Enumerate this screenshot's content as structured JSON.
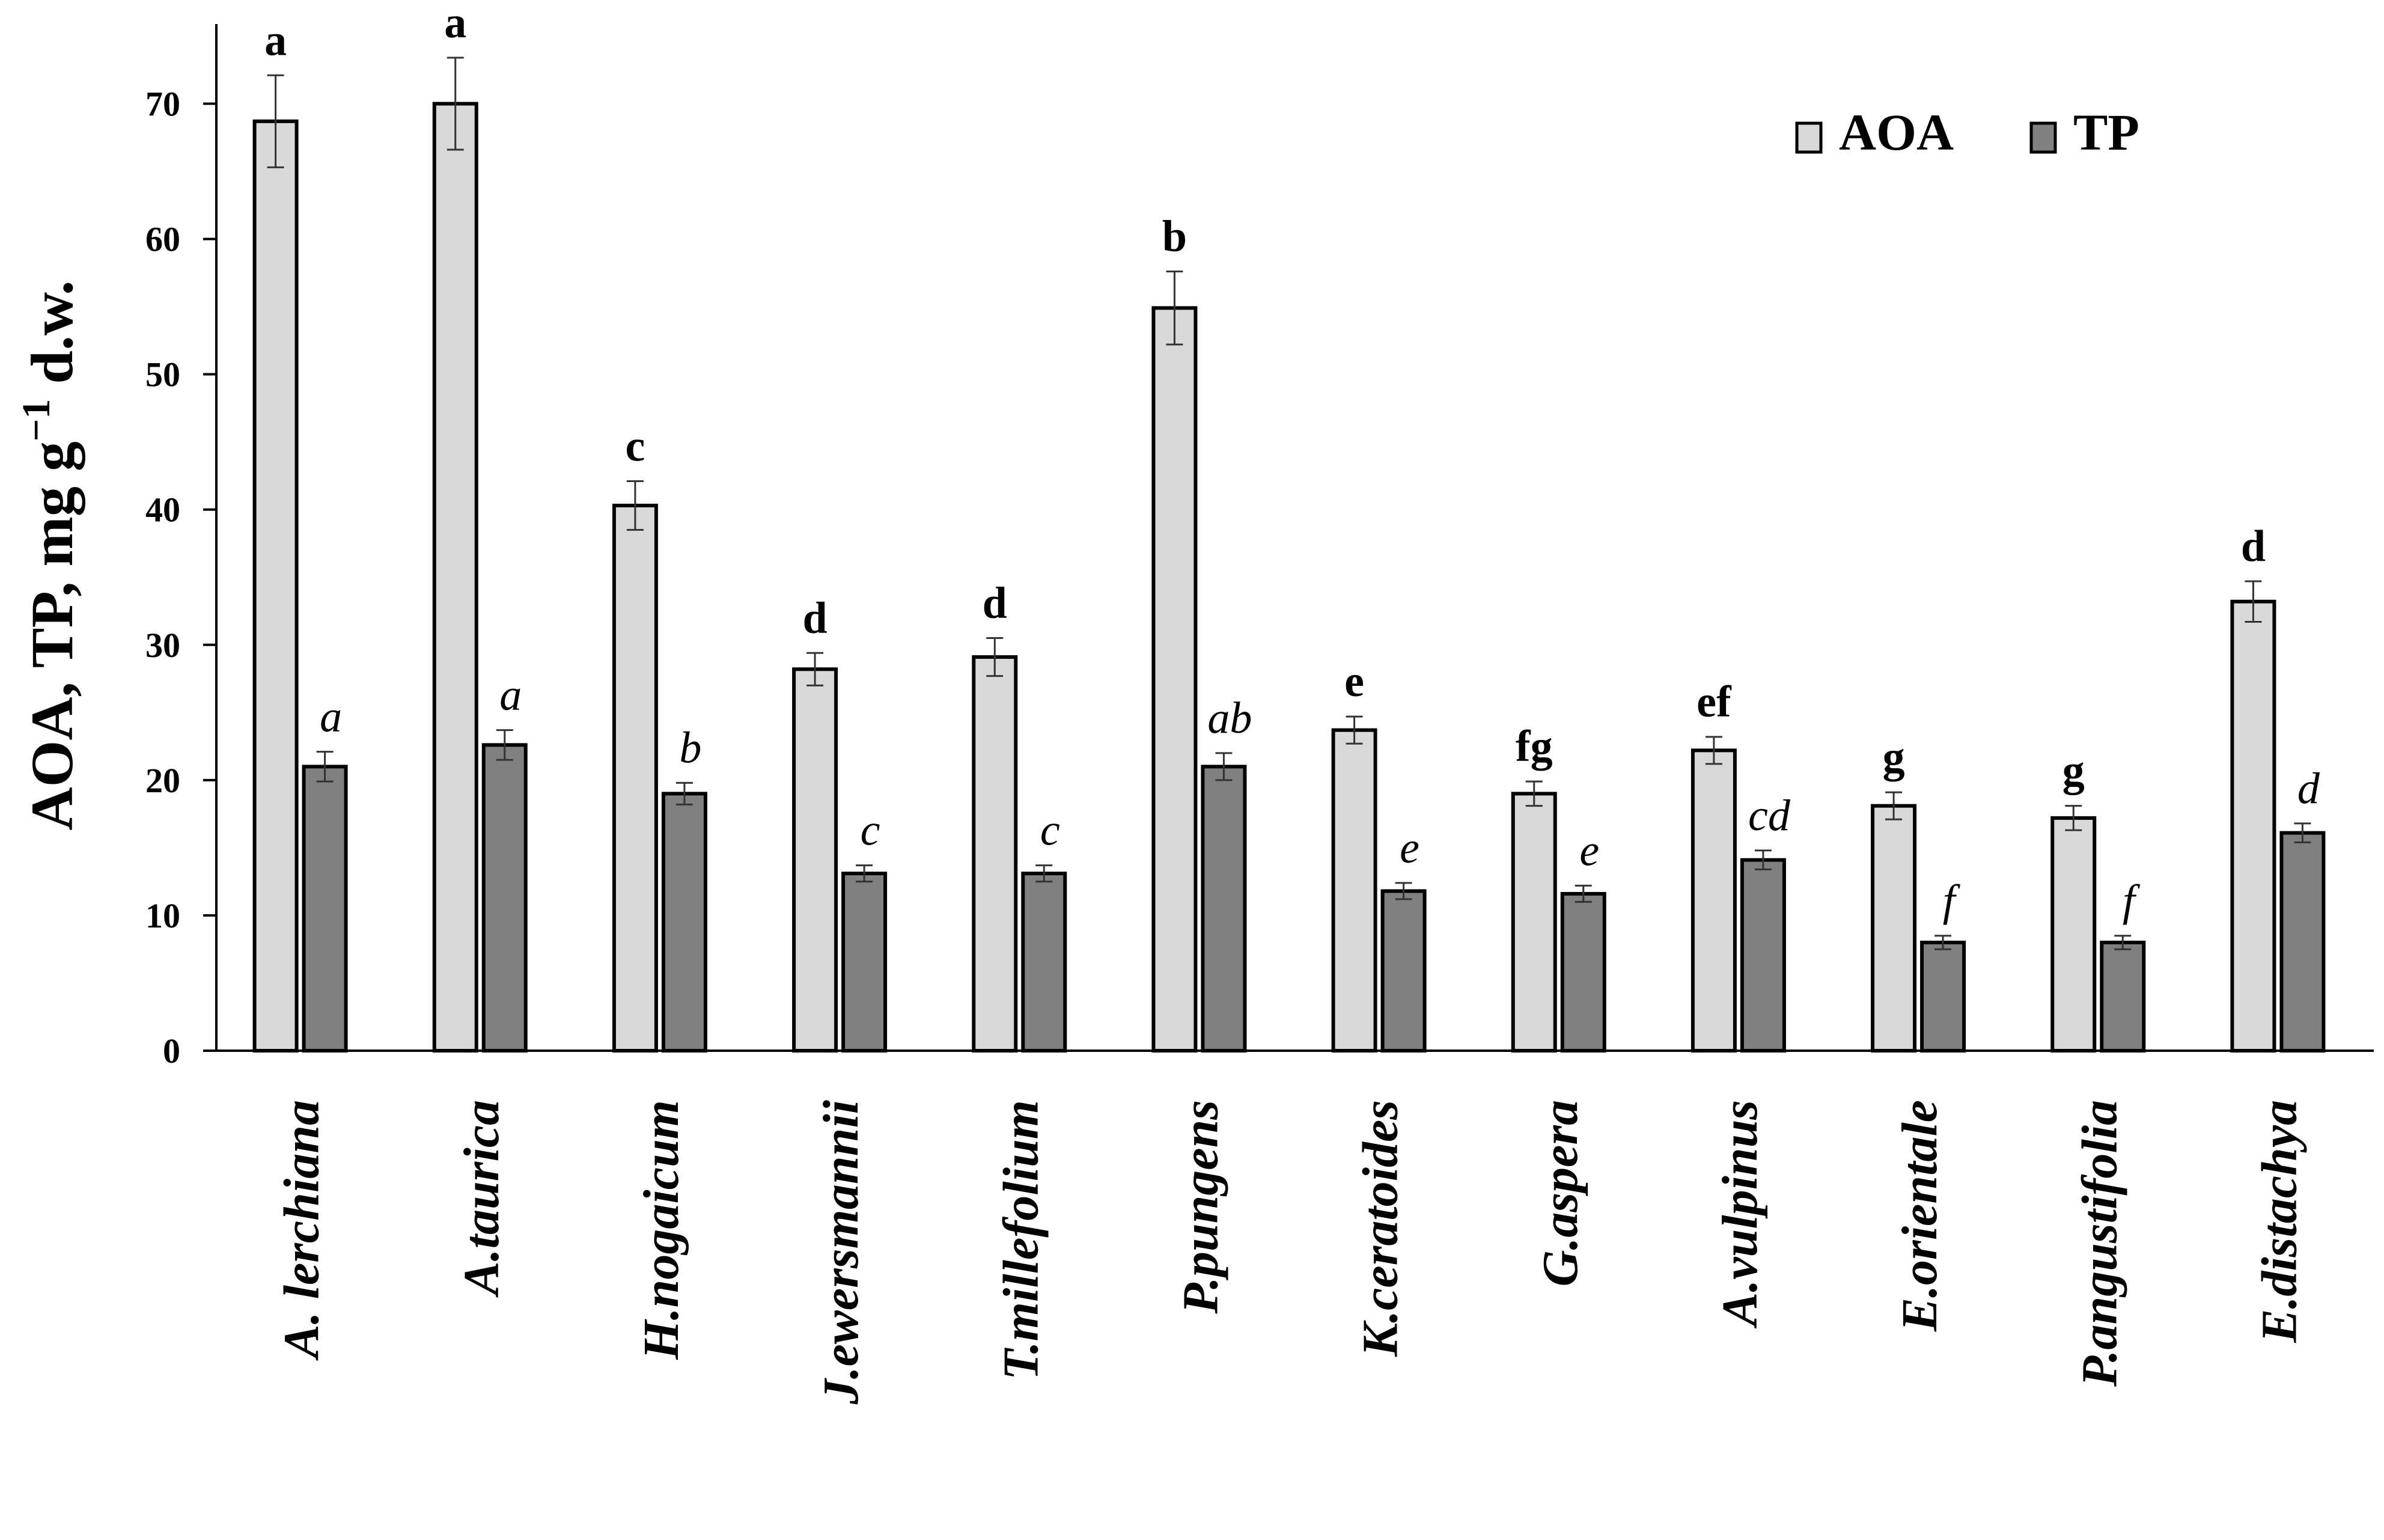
{
  "chart_data": {
    "type": "bar",
    "ylabel": "AOA, TP, mg g",
    "ylabel_sup": "−1",
    "ylabel_suffix": " d.w.",
    "ylim": [
      0,
      75
    ],
    "yticks": [
      0,
      10,
      20,
      30,
      40,
      50,
      60,
      70
    ],
    "grid": false,
    "legend_position": "top-right",
    "categories": [
      "A. lerchiana",
      "A.taurica",
      "H.nogaicum",
      "J.ewersmannii",
      "T.millefolium",
      "P.pungens",
      "K.ceratoides",
      "G.aspera",
      "A.vulpinus",
      "E.orientale",
      "P.angustifolia",
      "E.distachya"
    ],
    "series": [
      {
        "name": "AOA",
        "color": "#d9d9d9",
        "values": [
          68.7,
          70.0,
          40.3,
          28.2,
          29.1,
          54.9,
          23.7,
          19.0,
          22.2,
          18.1,
          17.2,
          33.2
        ],
        "errors": [
          3.4,
          3.4,
          1.8,
          1.2,
          1.4,
          2.7,
          1.0,
          0.9,
          1.0,
          1.0,
          0.9,
          1.5
        ],
        "labels": [
          "a",
          "a",
          "c",
          "d",
          "d",
          "b",
          "e",
          "fg",
          "ef",
          "g",
          "g",
          "d"
        ]
      },
      {
        "name": "TP",
        "color": "#808080",
        "values": [
          21.0,
          22.6,
          19.0,
          13.1,
          13.1,
          21.0,
          11.8,
          11.6,
          14.1,
          8.0,
          8.0,
          16.1
        ],
        "errors": [
          1.1,
          1.1,
          0.8,
          0.6,
          0.6,
          1.0,
          0.6,
          0.6,
          0.7,
          0.5,
          0.5,
          0.7
        ],
        "labels": [
          "a",
          "a",
          "b",
          "c",
          "c",
          "ab",
          "e",
          "e",
          "cd",
          "f",
          "f",
          "d"
        ]
      }
    ]
  }
}
